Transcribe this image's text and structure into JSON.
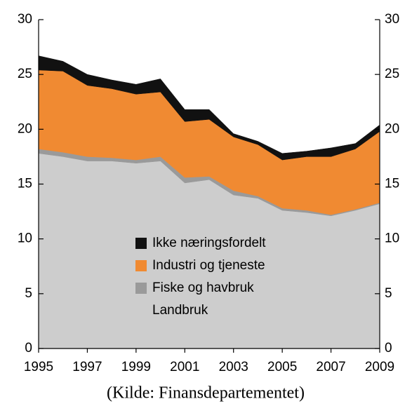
{
  "chart_data": {
    "type": "stacked_area",
    "x": [
      1995,
      1996,
      1997,
      1998,
      1999,
      2000,
      2001,
      2002,
      2003,
      2004,
      2005,
      2006,
      2007,
      2008,
      2009
    ],
    "series": [
      {
        "name": "Landbruk",
        "color": "#cdcdcd",
        "values": [
          17.8,
          17.5,
          17.1,
          17.1,
          16.9,
          17.1,
          15.1,
          15.4,
          14.0,
          13.7,
          12.6,
          12.4,
          12.1,
          12.6,
          13.2
        ]
      },
      {
        "name": "Fiske og havbruk",
        "color": "#9a9a9a",
        "values": [
          0.4,
          0.4,
          0.4,
          0.3,
          0.3,
          0.4,
          0.5,
          0.3,
          0.4,
          0.2,
          0.2,
          0.2,
          0.1,
          0.1,
          0.1
        ]
      },
      {
        "name": "Industri og tjeneste",
        "color": "#f08a32",
        "values": [
          7.2,
          7.4,
          6.5,
          6.3,
          6.0,
          5.9,
          5.1,
          5.2,
          4.9,
          4.7,
          4.4,
          4.9,
          5.3,
          5.5,
          6.5
        ]
      },
      {
        "name": "Ikke næringsfordelt",
        "color": "#111111",
        "values": [
          1.3,
          0.9,
          1.0,
          0.8,
          0.9,
          1.2,
          1.1,
          0.9,
          0.3,
          0.3,
          0.6,
          0.5,
          0.8,
          0.5,
          0.6
        ]
      }
    ],
    "xlim": [
      1995,
      2009
    ],
    "xticks": [
      1995,
      1997,
      1999,
      2001,
      2003,
      2005,
      2007,
      2009
    ],
    "ylim": [
      0,
      30
    ],
    "yticks": [
      0,
      5,
      10,
      15,
      20,
      25,
      30
    ],
    "y2lim": [
      0,
      30
    ],
    "y2ticks": [
      0,
      5,
      10,
      15,
      20,
      25,
      30
    ],
    "source": "(Kilde: Finansdepartementet)"
  }
}
